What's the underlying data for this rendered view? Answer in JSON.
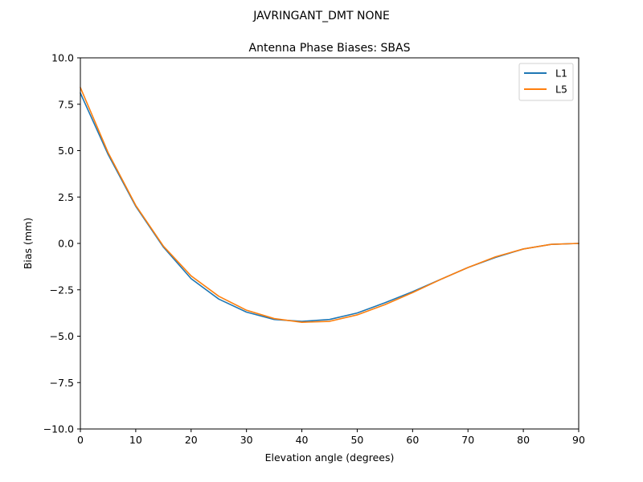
{
  "suptitle": "JAVRINGANT_DMT  NONE",
  "chart_data": {
    "type": "line",
    "title": "Antenna Phase Biases: SBAS",
    "xlabel": "Elevation angle (degrees)",
    "ylabel": "Bias (mm)",
    "xlim": [
      0,
      90
    ],
    "ylim": [
      -10,
      10
    ],
    "xticks": [
      0,
      10,
      20,
      30,
      40,
      50,
      60,
      70,
      80,
      90
    ],
    "xtick_labels": [
      "0",
      "10",
      "20",
      "30",
      "40",
      "50",
      "60",
      "70",
      "80",
      "90"
    ],
    "yticks": [
      10,
      7.5,
      5,
      2.5,
      0,
      -2.5,
      -5,
      -7.5,
      -10
    ],
    "ytick_labels": [
      "10.0",
      "7.5",
      "5.0",
      "2.5",
      "0.0",
      "−2.5",
      "−5.0",
      "−7.5",
      "−10.0"
    ],
    "grid": false,
    "legend_position": "top-right",
    "x": [
      0,
      5,
      10,
      15,
      20,
      25,
      30,
      35,
      40,
      45,
      50,
      55,
      60,
      65,
      70,
      75,
      80,
      85,
      90
    ],
    "series": [
      {
        "name": "L1",
        "color": "#1f77b4",
        "values": [
          8.1,
          4.8,
          2.0,
          -0.2,
          -1.9,
          -3.0,
          -3.7,
          -4.1,
          -4.2,
          -4.1,
          -3.75,
          -3.2,
          -2.6,
          -1.95,
          -1.3,
          -0.75,
          -0.3,
          -0.05,
          0.0
        ]
      },
      {
        "name": "L5",
        "color": "#ff7f0e",
        "values": [
          8.4,
          4.9,
          2.05,
          -0.15,
          -1.75,
          -2.85,
          -3.6,
          -4.05,
          -4.25,
          -4.2,
          -3.85,
          -3.3,
          -2.65,
          -1.95,
          -1.3,
          -0.72,
          -0.3,
          -0.05,
          0.0
        ]
      }
    ]
  }
}
